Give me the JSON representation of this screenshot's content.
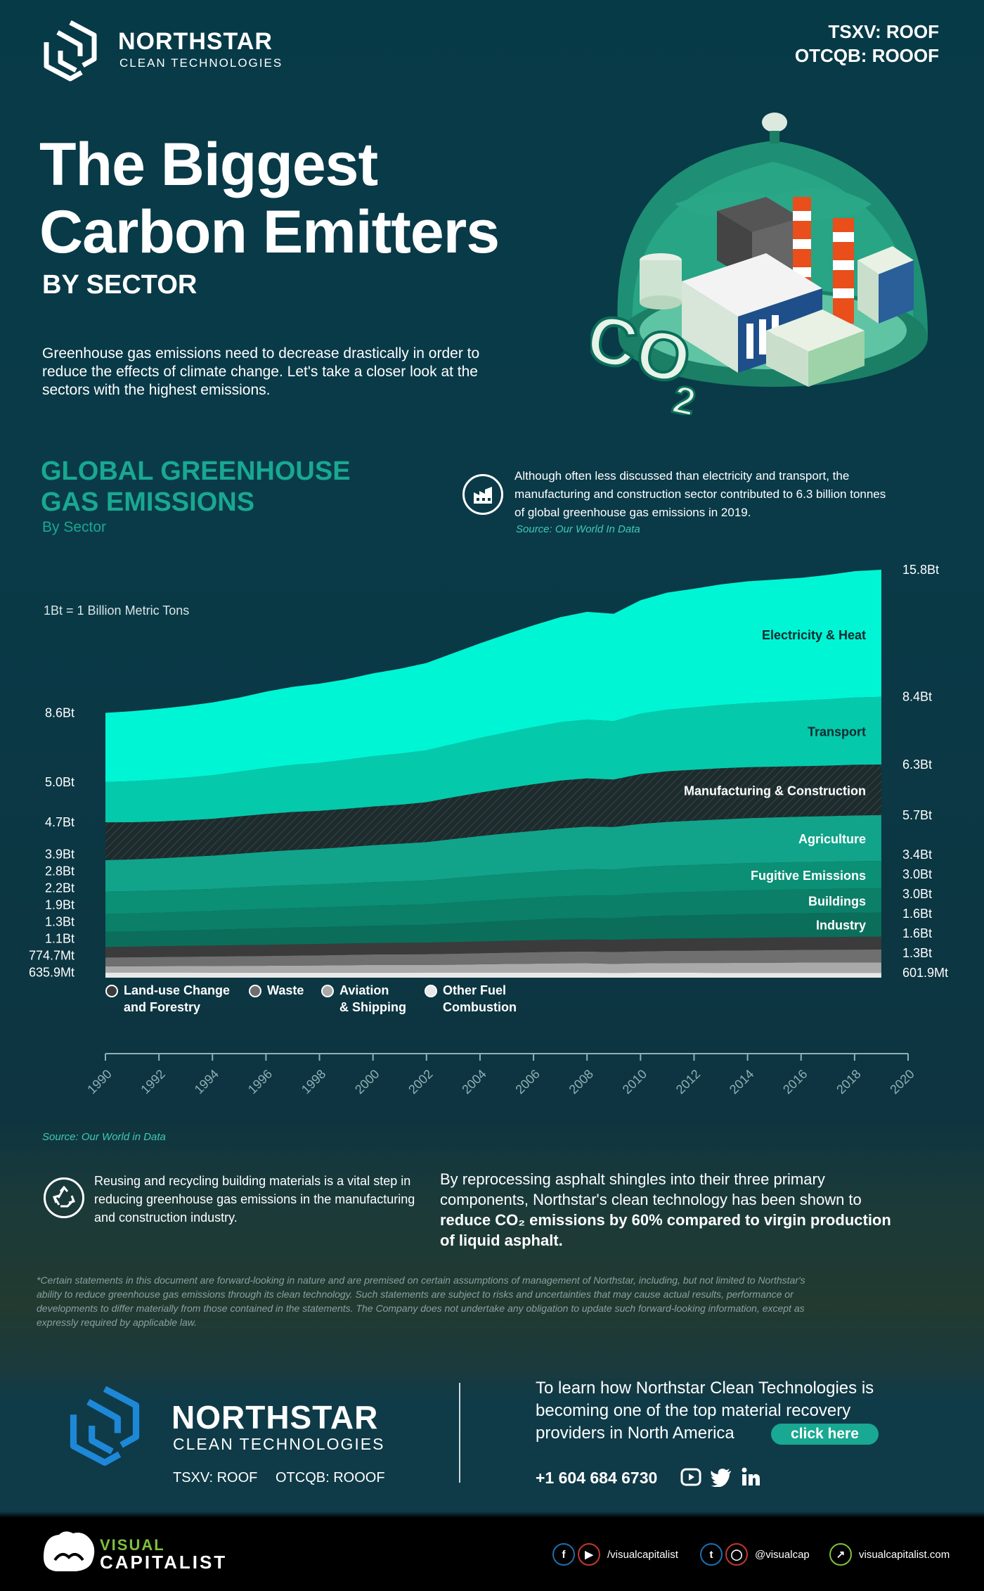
{
  "brand": {
    "name": "NORTHSTAR",
    "sub": "CLEAN TECHNOLOGIES",
    "ticker1": "TSXV: ROOF",
    "ticker2": "OTCQB: ROOOF",
    "logo_color": "#ffffff",
    "logo_color_footer": "#1e88d8"
  },
  "hero": {
    "title_line1": "The Biggest",
    "title_line2": "Carbon Emitters",
    "subtitle": "BY SECTOR",
    "intro": "Greenhouse gas emissions need to decrease drastically in order to reduce the effects of climate change. Let's take a closer look at the sectors with the highest emissions.",
    "illustration": "co2-factory-dome-illustration"
  },
  "section": {
    "title_line1": "GLOBAL GREENHOUSE",
    "title_line2": "GAS EMISSIONS",
    "subtitle": "By Sector",
    "note": "Although often less discussed than electricity and transport, the manufacturing and construction sector contributed to 6.3 billion tonnes of global greenhouse gas emissions in 2019.",
    "note_source": "Source: Our World In Data",
    "note_icon": "factory-icon",
    "unit_note": "1Bt = 1 Billion Metric Tons"
  },
  "chart_data": {
    "type": "area",
    "stacked": true,
    "x": [
      1990,
      1991,
      1992,
      1993,
      1994,
      1995,
      1996,
      1997,
      1998,
      1999,
      2000,
      2001,
      2002,
      2003,
      2004,
      2005,
      2006,
      2007,
      2008,
      2009,
      2010,
      2011,
      2012,
      2013,
      2014,
      2015,
      2016,
      2017,
      2018,
      2019
    ],
    "xlim": [
      1990,
      2020
    ],
    "xticks": [
      "1990",
      "1992",
      "1994",
      "1996",
      "1998",
      "2000",
      "2002",
      "2004",
      "2006",
      "2008",
      "2010",
      "2012",
      "2014",
      "2016",
      "2018",
      "2020"
    ],
    "series": [
      {
        "name": "Other Fuel Combustion",
        "color": "#e8e8e8",
        "start_label": "635.9Mt",
        "end_label": "601.9Mt",
        "values": [
          0.64,
          0.64,
          0.64,
          0.64,
          0.63,
          0.63,
          0.62,
          0.62,
          0.62,
          0.62,
          0.62,
          0.62,
          0.61,
          0.61,
          0.61,
          0.61,
          0.61,
          0.61,
          0.61,
          0.6,
          0.61,
          0.61,
          0.61,
          0.6,
          0.6,
          0.6,
          0.6,
          0.6,
          0.6,
          0.6
        ]
      },
      {
        "name": "Aviation & Shipping",
        "color": "#a9a9a9",
        "start_label": "774.7Mt",
        "end_label": "1.3Bt",
        "values": [
          0.77,
          0.78,
          0.79,
          0.8,
          0.82,
          0.84,
          0.86,
          0.88,
          0.9,
          0.93,
          0.96,
          0.96,
          0.97,
          1.0,
          1.05,
          1.09,
          1.13,
          1.17,
          1.18,
          1.12,
          1.17,
          1.2,
          1.21,
          1.23,
          1.25,
          1.26,
          1.28,
          1.29,
          1.3,
          1.3
        ]
      },
      {
        "name": "Waste",
        "color": "#6f6f6f",
        "start_label": "1.1Bt",
        "end_label": "1.6Bt",
        "values": [
          1.1,
          1.12,
          1.14,
          1.16,
          1.18,
          1.2,
          1.22,
          1.24,
          1.26,
          1.28,
          1.3,
          1.32,
          1.34,
          1.36,
          1.38,
          1.4,
          1.42,
          1.44,
          1.46,
          1.47,
          1.49,
          1.51,
          1.52,
          1.53,
          1.54,
          1.56,
          1.57,
          1.58,
          1.59,
          1.6
        ]
      },
      {
        "name": "Land-use Change and Forestry",
        "color": "#3b3b3b",
        "start_label": "1.3Bt",
        "end_label": "1.6Bt",
        "values": [
          1.3,
          1.32,
          1.34,
          1.36,
          1.36,
          1.38,
          1.38,
          1.4,
          1.4,
          1.42,
          1.42,
          1.44,
          1.44,
          1.46,
          1.46,
          1.48,
          1.48,
          1.5,
          1.5,
          1.52,
          1.52,
          1.54,
          1.54,
          1.55,
          1.56,
          1.57,
          1.58,
          1.58,
          1.59,
          1.6
        ]
      },
      {
        "name": "Industry",
        "color": "#0b6e5a",
        "start_label": "1.9Bt",
        "end_label": "3.0Bt",
        "values": [
          1.9,
          1.88,
          1.9,
          1.92,
          1.96,
          2.0,
          2.05,
          2.08,
          2.1,
          2.12,
          2.15,
          2.17,
          2.2,
          2.3,
          2.4,
          2.48,
          2.56,
          2.62,
          2.66,
          2.66,
          2.78,
          2.84,
          2.88,
          2.92,
          2.95,
          2.96,
          2.97,
          2.98,
          3.0,
          3.0
        ]
      },
      {
        "name": "Buildings",
        "color": "#0b7f68",
        "start_label": "2.2Bt",
        "end_label": "3.0Bt",
        "values": [
          2.2,
          2.24,
          2.26,
          2.3,
          2.32,
          2.36,
          2.4,
          2.42,
          2.44,
          2.46,
          2.5,
          2.52,
          2.55,
          2.6,
          2.64,
          2.68,
          2.72,
          2.76,
          2.8,
          2.82,
          2.86,
          2.88,
          2.9,
          2.92,
          2.94,
          2.95,
          2.97,
          2.98,
          3.0,
          3.0
        ]
      },
      {
        "name": "Fugitive Emissions",
        "color": "#0b8f75",
        "start_label": "2.8Bt",
        "end_label": "3.4Bt",
        "values": [
          2.8,
          2.78,
          2.76,
          2.74,
          2.76,
          2.78,
          2.82,
          2.84,
          2.86,
          2.88,
          2.92,
          2.94,
          2.98,
          3.04,
          3.1,
          3.16,
          3.2,
          3.24,
          3.28,
          3.24,
          3.3,
          3.34,
          3.36,
          3.38,
          3.4,
          3.4,
          3.4,
          3.4,
          3.4,
          3.4
        ]
      },
      {
        "name": "Agriculture",
        "color": "#11a48a",
        "start_label": "3.9Bt",
        "end_label": "5.7Bt",
        "values": [
          3.9,
          3.94,
          4.0,
          4.08,
          4.14,
          4.22,
          4.3,
          4.38,
          4.44,
          4.52,
          4.6,
          4.68,
          4.76,
          4.86,
          4.96,
          5.04,
          5.12,
          5.2,
          5.28,
          5.3,
          5.38,
          5.44,
          5.5,
          5.54,
          5.58,
          5.62,
          5.64,
          5.66,
          5.68,
          5.7
        ]
      },
      {
        "name": "Manufacturing & Construction",
        "color": "#1e2b2d",
        "start_label": "4.7Bt",
        "end_label": "6.3Bt",
        "values": [
          4.7,
          4.62,
          4.58,
          4.56,
          4.58,
          4.64,
          4.7,
          4.74,
          4.72,
          4.76,
          4.8,
          4.84,
          4.96,
          5.2,
          5.4,
          5.6,
          5.8,
          5.96,
          6.0,
          5.9,
          6.2,
          6.3,
          6.32,
          6.36,
          6.34,
          6.3,
          6.28,
          6.28,
          6.3,
          6.3
        ]
      },
      {
        "name": "Transport",
        "color": "#05c9ab",
        "start_label": "5.0Bt",
        "end_label": "8.4Bt",
        "values": [
          5.0,
          5.1,
          5.2,
          5.3,
          5.4,
          5.55,
          5.7,
          5.85,
          5.95,
          6.1,
          6.25,
          6.35,
          6.45,
          6.6,
          6.8,
          6.95,
          7.1,
          7.25,
          7.3,
          7.25,
          7.5,
          7.65,
          7.75,
          7.85,
          7.95,
          8.05,
          8.15,
          8.25,
          8.35,
          8.4
        ]
      },
      {
        "name": "Electricity & Heat",
        "color": "#00f5d4",
        "start_label": "8.6Bt",
        "end_label": "15.8Bt",
        "values": [
          8.6,
          8.7,
          8.8,
          8.9,
          9.05,
          9.2,
          9.5,
          9.7,
          9.85,
          10.0,
          10.3,
          10.55,
          10.85,
          11.3,
          11.75,
          12.2,
          12.65,
          13.05,
          13.4,
          13.35,
          14.1,
          14.55,
          14.75,
          15.0,
          15.15,
          15.2,
          15.25,
          15.45,
          15.7,
          15.8
        ]
      }
    ],
    "legend": [
      {
        "label_line1": "Land-use Change",
        "label_line2": "and Forestry",
        "color": "#3b3b3b"
      },
      {
        "label_line1": "Waste",
        "label_line2": "",
        "color": "#6f6f6f"
      },
      {
        "label_line1": "Aviation",
        "label_line2": "& Shipping",
        "color": "#a9a9a9"
      },
      {
        "label_line1": "Other Fuel",
        "label_line2": "Combustion",
        "color": "#e8e8e8"
      }
    ],
    "source": "Source: Our World in Data"
  },
  "recycle": {
    "icon": "recycle-icon",
    "text": "Reusing and recycling building materials is a vital step in reducing greenhouse gas emissions in the manufacturing and construction industry.",
    "claim_part1": "By reprocessing asphalt shingles into their three primary components, Northstar's clean technology has been shown to ",
    "claim_bold": "reduce CO₂ emissions by 60% compared to virgin production of liquid asphalt."
  },
  "disclaimer": "*Certain statements in this document are forward-looking in nature and are premised on certain assumptions of management of Northstar, including, but not limited to Northstar's ability to reduce greenhouse gas emissions through its clean technology. Such statements are subject to risks and uncertainties that may cause actual results, performance or developments to differ materially from those contained in the statements. The Company does not undertake any obligation to update such forward-looking information, except as expressly required by applicable law.",
  "footer_cta": {
    "text": "To learn how Northstar Clean Technologies is becoming one of the top material recovery providers in North America",
    "button": "click here",
    "phone": "+1 604 684 6730",
    "icons": [
      "youtube-icon",
      "twitter-icon",
      "linkedin-icon"
    ]
  },
  "vc": {
    "brand_top": "VISUAL",
    "brand_bottom": "CAPITALIST",
    "social1": "/visualcapitalist",
    "social2": "@visualcap",
    "social3": "visualcapitalist.com"
  }
}
